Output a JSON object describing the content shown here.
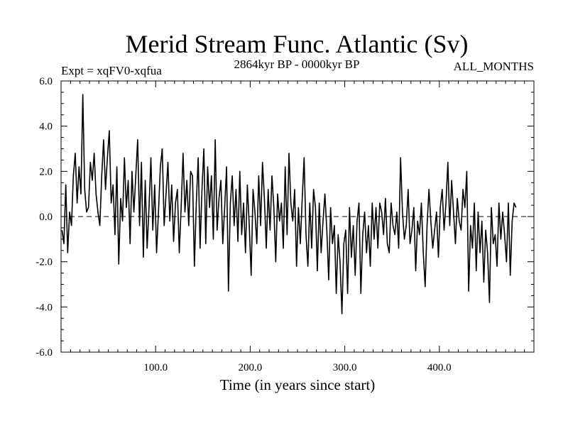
{
  "chart_data": {
    "type": "line",
    "title": "Merid Stream Func. Atlantic (Sv)",
    "subtitle_left": "Expt = xqFV0-xqfua",
    "subtitle_center": "2864kyr BP - 0000kyr BP",
    "subtitle_right": "ALL_MONTHS",
    "xlabel": "Time (in years since start)",
    "ylabel": "",
    "xlim": [
      0,
      500
    ],
    "ylim": [
      -6,
      6
    ],
    "xticks": [
      100,
      200,
      300,
      400
    ],
    "xtick_labels": [
      "100.0",
      "200.0",
      "300.0",
      "400.0"
    ],
    "yticks": [
      6,
      4,
      2,
      0,
      -2,
      -4,
      -6
    ],
    "ytick_labels": [
      "6.0",
      "4.0",
      "2.0",
      "0.0",
      "-2.0",
      "-4.0",
      "-6.0"
    ],
    "zero_line": "dashed",
    "series": [
      {
        "name": "Merid Stream Func. Atlantic",
        "x_start": 1,
        "x_step": 2,
        "values": [
          -0.6,
          -1.2,
          1.4,
          -1.6,
          0.2,
          -0.4,
          1.8,
          2.8,
          0.6,
          2.2,
          1.0,
          5.4,
          1.2,
          0.2,
          0.4,
          2.4,
          1.6,
          2.8,
          1.0,
          0.2,
          -0.4,
          1.8,
          3.4,
          1.2,
          2.6,
          3.8,
          0.6,
          1.4,
          -0.8,
          2.2,
          -2.1,
          0.8,
          -0.2,
          2.6,
          0.4,
          1.6,
          -1.2,
          2.0,
          0.2,
          1.8,
          3.4,
          -0.4,
          2.4,
          -1.8,
          1.6,
          -1.4,
          0.4,
          2.6,
          -0.6,
          1.4,
          -1.6,
          0.2,
          2.2,
          3.0,
          -0.4,
          1.0,
          2.4,
          -0.2,
          1.4,
          -1.1,
          0.6,
          1.2,
          -1.6,
          0.4,
          2.8,
          0.2,
          1.6,
          -0.4,
          2.0,
          1.8,
          -2.2,
          0.6,
          2.6,
          -1.4,
          1.2,
          3.0,
          -1.2,
          2.2,
          0.4,
          1.8,
          -1.0,
          3.4,
          -0.6,
          0.8,
          1.6,
          -1.2,
          0.4,
          2.2,
          -3.3,
          0.6,
          1.8,
          -0.4,
          1.2,
          -1.1,
          2.0,
          -0.8,
          0.6,
          -1.6,
          1.4,
          -0.4,
          -2.6,
          1.2,
          0.2,
          -1.2,
          1.8,
          -0.4,
          2.4,
          0.8,
          -1.4,
          1.2,
          -0.6,
          1.8,
          0.4,
          -2.0,
          1.0,
          -0.2,
          0.6,
          -1.4,
          2.2,
          -0.8,
          2.8,
          0.6,
          -0.2,
          1.2,
          -2.2,
          0.4,
          -1.2,
          0.8,
          2.6,
          -0.8,
          -2.2,
          0.6,
          -1.4,
          1.2,
          0.4,
          -2.4,
          0.6,
          -1.6,
          -0.2,
          1.0,
          -0.6,
          -2.8,
          0.4,
          -1.2,
          -0.4,
          -3.4,
          -0.8,
          -2.0,
          -4.3,
          -1.2,
          -0.6,
          -3.4,
          0.4,
          -1.8,
          -0.4,
          -2.6,
          -0.2,
          0.6,
          -3.4,
          -0.8,
          0.2,
          -1.6,
          -0.4,
          -2.2,
          0.6,
          -1.0,
          0.4,
          -1.4,
          0.6,
          0.2,
          -0.8,
          0.8,
          -1.2,
          -1.6,
          0.6,
          -0.4,
          -0.8,
          0.2,
          -1.4,
          2.6,
          0.2,
          -1.0,
          -0.4,
          1.2,
          -1.2,
          -0.6,
          0.4,
          -2.4,
          -0.2,
          -0.8,
          0.6,
          -1.6,
          -3.1,
          -0.4,
          1.2,
          -0.2,
          -1.4,
          -0.6,
          0.2,
          -1.8,
          0.4,
          1.2,
          -0.6,
          0.6,
          2.4,
          -0.4,
          1.6,
          0.2,
          -1.2,
          0.8,
          -0.2,
          -0.6,
          1.2,
          0.4,
          2.0,
          -3.3,
          -0.4,
          -1.4,
          0.6,
          -2.4,
          0.2,
          -1.6,
          -0.2,
          -2.9,
          -0.6,
          -1.6,
          -3.8,
          0.4,
          -1.2,
          -0.8,
          -2.2,
          0.6,
          -1.0,
          0.2,
          -0.8,
          -2.0,
          0.6,
          -2.6,
          -0.2,
          0.6,
          0.4
        ]
      }
    ]
  }
}
